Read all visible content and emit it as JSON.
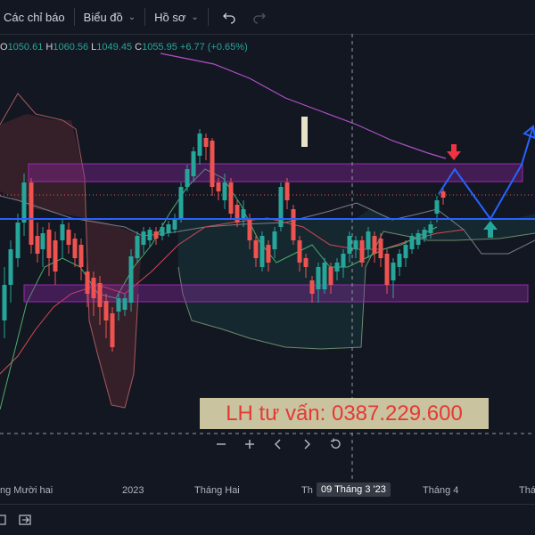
{
  "toolbar": {
    "indicators_label": "Các chỉ báo",
    "charts_label": "Biểu đồ",
    "profile_label": "Hồ sơ"
  },
  "ohlc": {
    "o_label": "O",
    "o_value": "1050.61",
    "h_label": "H",
    "h_value": "1060.56",
    "l_label": "L",
    "l_value": "1049.45",
    "c_label": "C",
    "c_value": "1055.95",
    "change": "+6.77 (+0.65%)"
  },
  "promo": {
    "text": "LH tư vấn: 0387.229.600"
  },
  "time_axis": {
    "labels": [
      "ng Mười hai",
      "2023",
      "Tháng Hai",
      "Th",
      "Tháng 4",
      "Thá"
    ],
    "crosshair_label": "09 Tháng 3 '23"
  },
  "colors": {
    "background": "#131722",
    "up_candle": "#26a69a",
    "down_candle": "#ef5350",
    "support_line": "#2962ff",
    "zone": "#9c27b0",
    "promo_bg": "#c9c39f",
    "promo_text": "#e53935"
  },
  "icons": [
    "undo-icon",
    "redo-icon",
    "zoom-out-icon",
    "zoom-in-icon",
    "scroll-left-icon",
    "scroll-right-icon",
    "reset-icon",
    "fullscreen-icon",
    "replay-icon"
  ]
}
